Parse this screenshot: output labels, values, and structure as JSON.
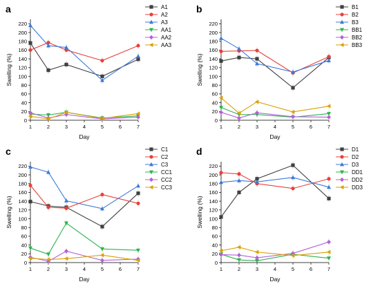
{
  "figure": {
    "x_ticks": [
      "1",
      "2",
      "3",
      "4",
      "5",
      "6",
      "7"
    ],
    "y_ticks": [
      "0",
      "20",
      "40",
      "60",
      "80",
      "100",
      "120",
      "140",
      "160",
      "180",
      "200",
      "220"
    ]
  },
  "chart_data": [
    {
      "panel_label": "a",
      "type": "line",
      "xlabel": "Day",
      "ylabel": "Swelling (%)",
      "xlim": [
        1,
        7
      ],
      "ylim": [
        0,
        230
      ],
      "legend": "top-right",
      "grid": false,
      "x": [
        1,
        2,
        3,
        5,
        7
      ],
      "series": [
        {
          "name": "A1",
          "color": "#404040",
          "marker": "square",
          "values": [
            176,
            114,
            127,
            100,
            139
          ]
        },
        {
          "name": "A2",
          "color": "#e8403a",
          "marker": "circle",
          "values": [
            160,
            177,
            160,
            136,
            170
          ]
        },
        {
          "name": "A3",
          "color": "#3c78d8",
          "marker": "triangle-up",
          "values": [
            216,
            170,
            166,
            91,
            146
          ]
        },
        {
          "name": "AA1",
          "color": "#2ab34a",
          "marker": "triangle-down",
          "values": [
            14,
            12,
            18,
            5,
            10
          ]
        },
        {
          "name": "AA2",
          "color": "#b360d8",
          "marker": "diamond",
          "values": [
            17,
            5,
            13,
            3,
            7
          ]
        },
        {
          "name": "AA3",
          "color": "#d9a000",
          "marker": "triangle-left",
          "values": [
            9,
            3,
            18,
            4,
            15
          ]
        }
      ]
    },
    {
      "panel_label": "b",
      "type": "line",
      "xlabel": "Day",
      "ylabel": "Swelling (%)",
      "xlim": [
        1,
        7
      ],
      "ylim": [
        0,
        230
      ],
      "legend": "top-right",
      "grid": false,
      "x": [
        1,
        2,
        3,
        5,
        7
      ],
      "series": [
        {
          "name": "B1",
          "color": "#404040",
          "marker": "square",
          "values": [
            135,
            143,
            140,
            74,
            143
          ]
        },
        {
          "name": "B2",
          "color": "#e8403a",
          "marker": "circle",
          "values": [
            157,
            158,
            159,
            108,
            145
          ]
        },
        {
          "name": "B3",
          "color": "#3c78d8",
          "marker": "triangle-up",
          "values": [
            187,
            163,
            129,
            110,
            136
          ]
        },
        {
          "name": "BB1",
          "color": "#2ab34a",
          "marker": "triangle-down",
          "values": [
            29,
            13,
            13,
            7,
            15
          ]
        },
        {
          "name": "BB2",
          "color": "#b360d8",
          "marker": "diamond",
          "values": [
            18,
            5,
            17,
            8,
            7
          ]
        },
        {
          "name": "BB3",
          "color": "#d9a000",
          "marker": "triangle-left",
          "values": [
            51,
            16,
            42,
            19,
            32
          ]
        }
      ]
    },
    {
      "panel_label": "c",
      "type": "line",
      "xlabel": "Day",
      "ylabel": "Swelling (%)",
      "xlim": [
        1,
        7
      ],
      "ylim": [
        0,
        230
      ],
      "legend": "top-right",
      "grid": false,
      "x": [
        1,
        2,
        3,
        5,
        7
      ],
      "series": [
        {
          "name": "C1",
          "color": "#404040",
          "marker": "square",
          "values": [
            139,
            129,
            126,
            82,
            158
          ]
        },
        {
          "name": "C2",
          "color": "#e8403a",
          "marker": "circle",
          "values": [
            176,
            126,
            124,
            155,
            135
          ]
        },
        {
          "name": "C3",
          "color": "#3c78d8",
          "marker": "triangle-up",
          "values": [
            218,
            206,
            141,
            123,
            175
          ]
        },
        {
          "name": "CC1",
          "color": "#2ab34a",
          "marker": "triangle-down",
          "values": [
            33,
            19,
            90,
            31,
            28
          ]
        },
        {
          "name": "CC2",
          "color": "#b360d8",
          "marker": "diamond",
          "values": [
            12,
            3,
            26,
            5,
            8
          ]
        },
        {
          "name": "CC3",
          "color": "#d9a000",
          "marker": "triangle-left",
          "values": [
            10,
            7,
            9,
            17,
            5
          ]
        }
      ]
    },
    {
      "panel_label": "d",
      "type": "line",
      "xlabel": "Day",
      "ylabel": "Swelling (%)",
      "xlim": [
        1,
        7
      ],
      "ylim": [
        0,
        230
      ],
      "legend": "top-right",
      "grid": false,
      "x": [
        1,
        2,
        3,
        5,
        7
      ],
      "series": [
        {
          "name": "D1",
          "color": "#404040",
          "marker": "square",
          "values": [
            104,
            160,
            191,
            222,
            146
          ]
        },
        {
          "name": "D2",
          "color": "#e8403a",
          "marker": "circle",
          "values": [
            205,
            202,
            180,
            169,
            191
          ]
        },
        {
          "name": "D3",
          "color": "#3c78d8",
          "marker": "triangle-up",
          "values": [
            183,
            187,
            184,
            194,
            172
          ]
        },
        {
          "name": "DD1",
          "color": "#2ab34a",
          "marker": "triangle-down",
          "values": [
            19,
            6,
            4,
            19,
            10
          ]
        },
        {
          "name": "DD2",
          "color": "#b360d8",
          "marker": "diamond",
          "values": [
            18,
            17,
            11,
            21,
            47
          ]
        },
        {
          "name": "DD3",
          "color": "#d9a000",
          "marker": "triangle-left",
          "values": [
            27,
            35,
            24,
            16,
            24
          ]
        }
      ]
    }
  ]
}
